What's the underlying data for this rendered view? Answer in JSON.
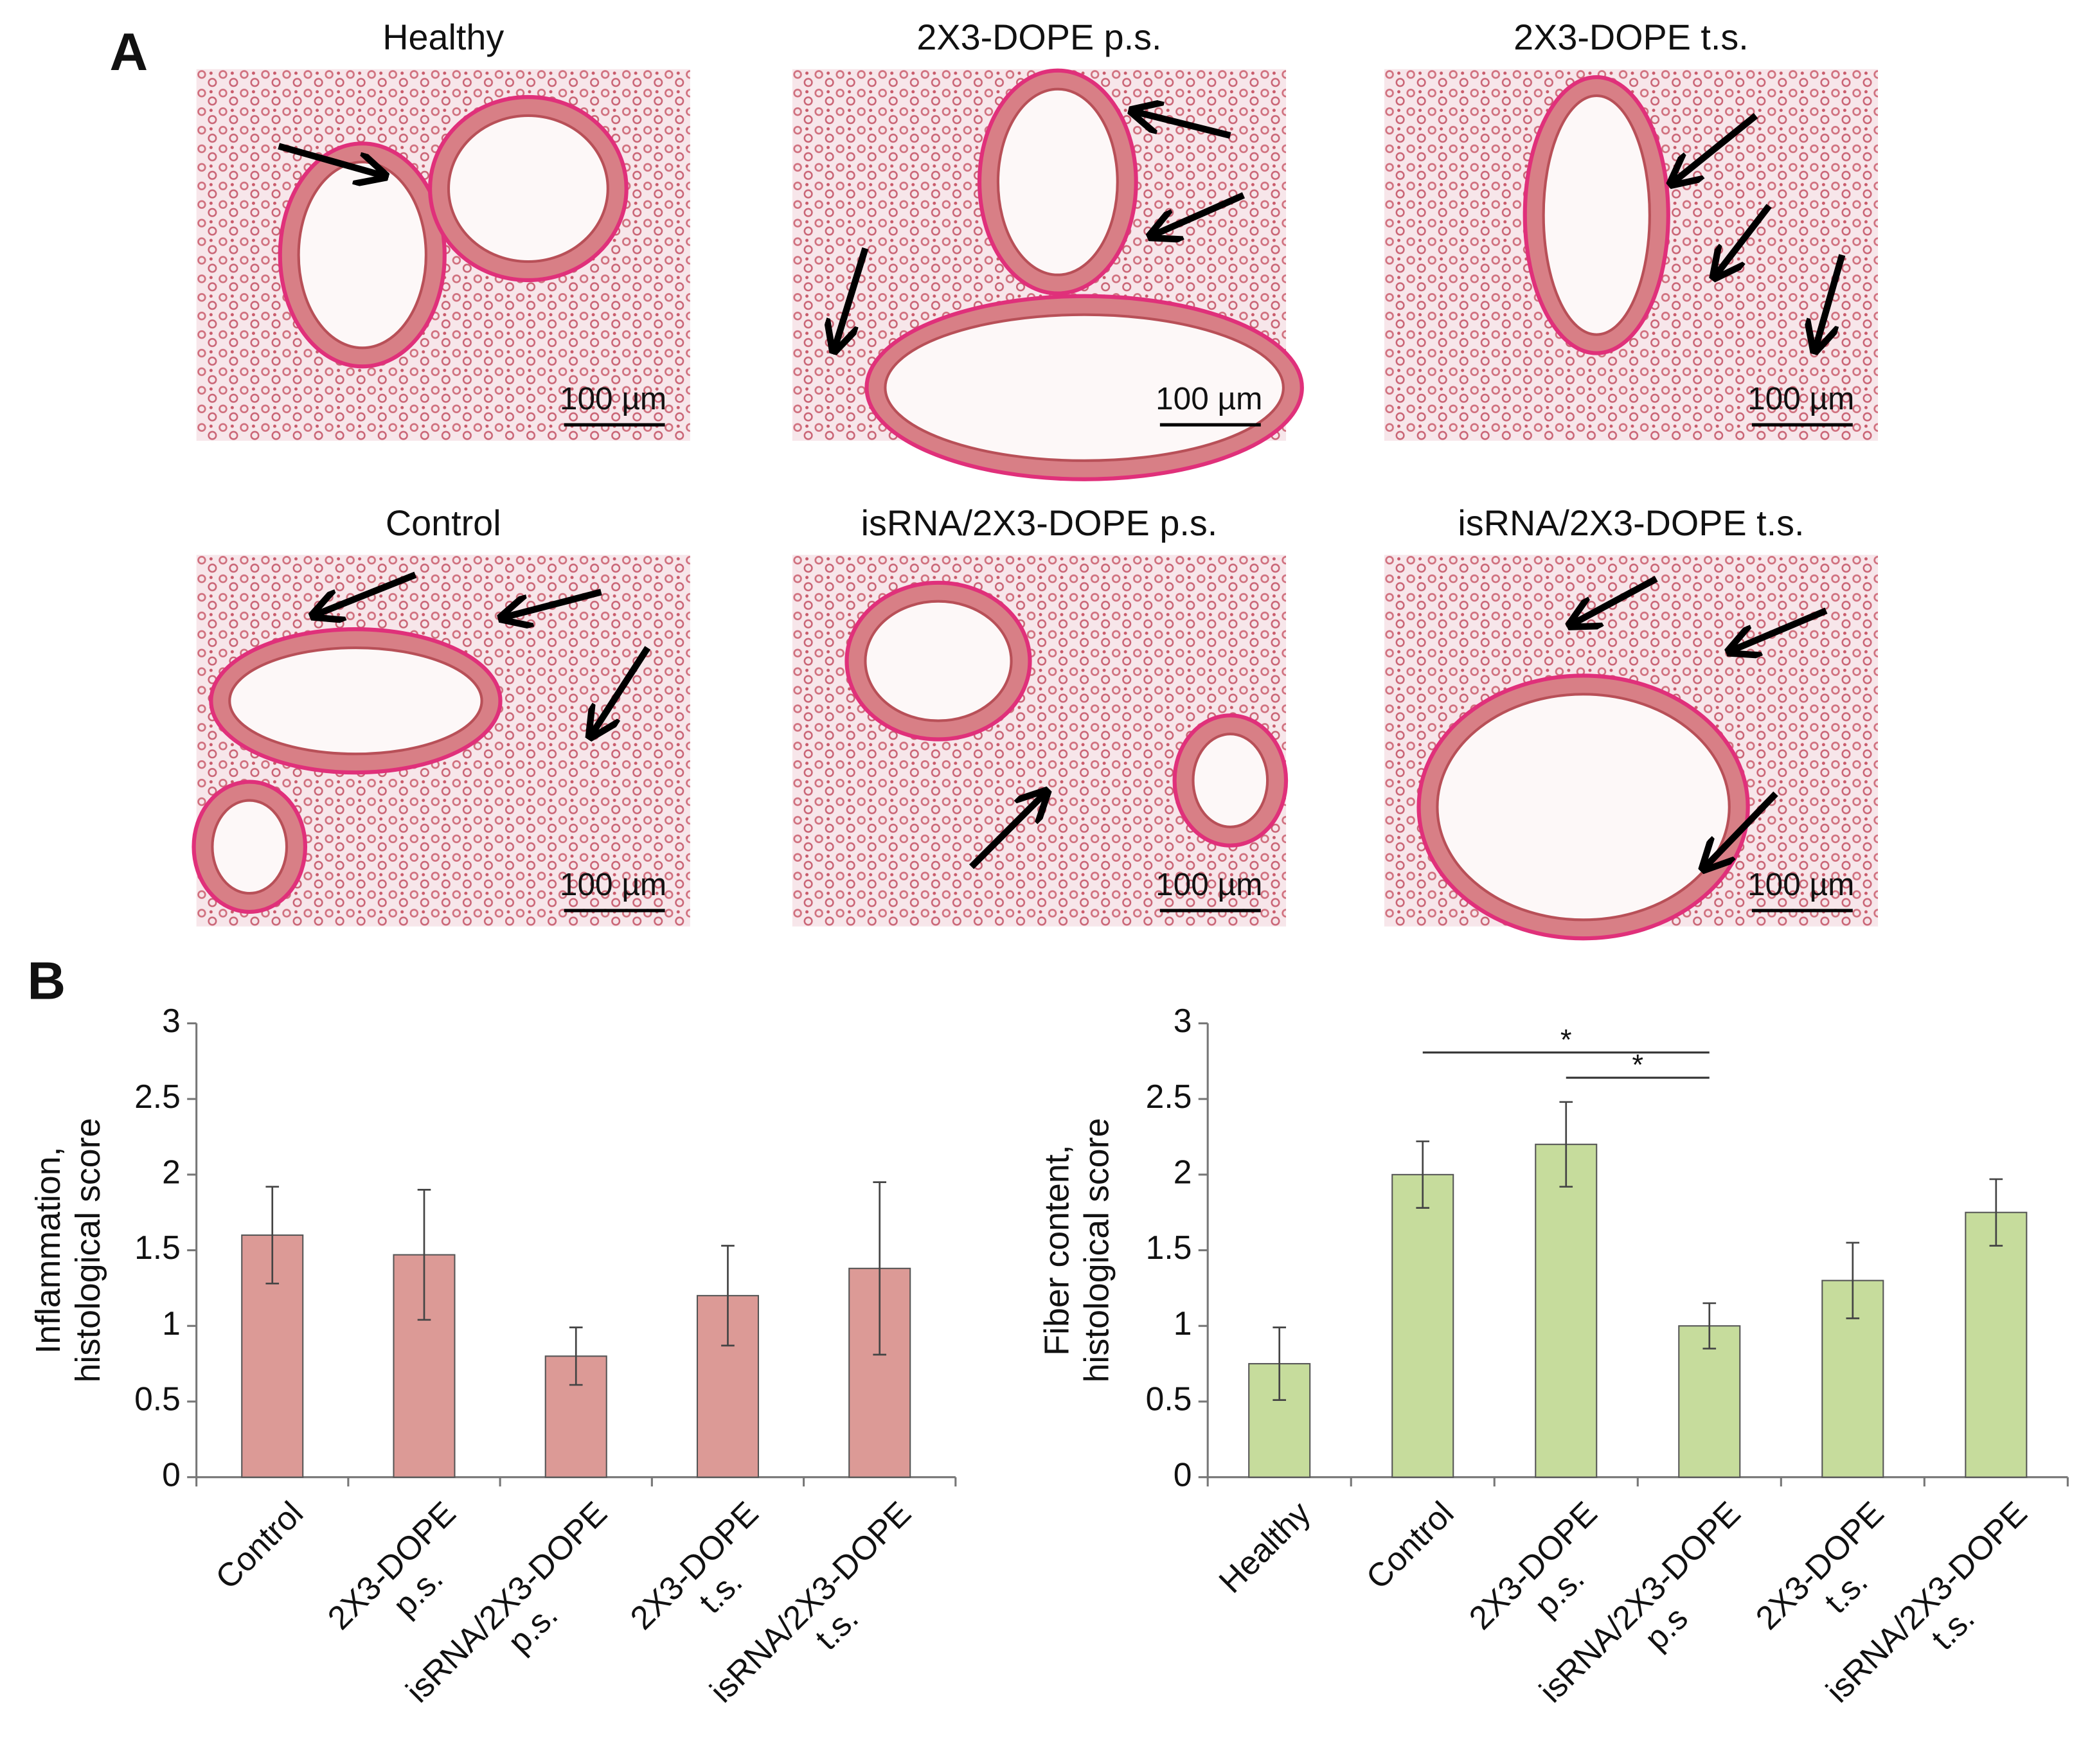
{
  "panel_a": {
    "label": "A",
    "images": [
      {
        "title": "Healthy",
        "scale_bar": "100 µm"
      },
      {
        "title": "2X3-DOPE p.s.",
        "scale_bar": "100 µm"
      },
      {
        "title": "2X3-DOPE t.s.",
        "scale_bar": "100 µm"
      },
      {
        "title": "Control",
        "scale_bar": "100 µm"
      },
      {
        "title": "isRNA/2X3-DOPE p.s.",
        "scale_bar": "100 µm"
      },
      {
        "title": "isRNA/2X3-DOPE t.s.",
        "scale_bar": "100 µm"
      }
    ]
  },
  "panel_b": {
    "label": "B"
  },
  "chart_data": [
    {
      "type": "bar",
      "y_label": "Inflammation,\nhistological score",
      "categories": [
        "Control",
        "2X3-DOPE\np.s.",
        "isRNA/2X3-DOPE\np.s.",
        "2X3-DOPE\nt.s.",
        "isRNA/2X3-DOPE\nt.s."
      ],
      "values": [
        1.6,
        1.47,
        0.8,
        1.2,
        1.38
      ],
      "errors": [
        0.32,
        0.43,
        0.19,
        0.33,
        0.57
      ],
      "color": "#dc9a96",
      "ylim": [
        0,
        3
      ],
      "yticks": [
        0,
        0.5,
        1,
        1.5,
        2,
        2.5,
        3
      ]
    },
    {
      "type": "bar",
      "y_label": "Fiber content,\nhistological score",
      "categories": [
        "Healthy",
        "Control",
        "2X3-DOPE\np.s.",
        "isRNA/2X3-DOPE\np.s",
        "2X3-DOPE\nt.s.",
        "isRNA/2X3-DOPE\nt.s."
      ],
      "values": [
        0.75,
        2.0,
        2.2,
        1.0,
        1.3,
        1.75
      ],
      "errors": [
        0.24,
        0.22,
        0.28,
        0.15,
        0.25,
        0.22
      ],
      "color": "#c6dc9c",
      "ylim": [
        0,
        3
      ],
      "yticks": [
        0,
        0.5,
        1,
        1.5,
        2,
        2.5,
        3
      ],
      "significance": [
        {
          "label": "*",
          "between": [
            1,
            3
          ]
        },
        {
          "label": "*",
          "between": [
            2,
            3
          ]
        }
      ]
    }
  ]
}
